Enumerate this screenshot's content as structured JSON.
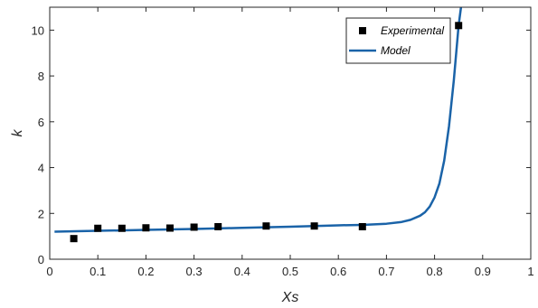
{
  "chart_data": {
    "type": "scatter",
    "title": "",
    "xlabel": "Xs",
    "ylabel": "k",
    "xlim": [
      0,
      1
    ],
    "ylim": [
      0,
      11
    ],
    "x_ticks": [
      0,
      0.1,
      0.2,
      0.3,
      0.4,
      0.5,
      0.6,
      0.7,
      0.8,
      0.9,
      1
    ],
    "x_tick_labels": [
      "0",
      "0.1",
      "0.2",
      "0.3",
      "0.4",
      "0.5",
      "0.6",
      "0.7",
      "0.8",
      "0.9",
      "1"
    ],
    "y_ticks": [
      0,
      2,
      4,
      6,
      8,
      10
    ],
    "y_tick_labels": [
      "0",
      "2",
      "4",
      "6",
      "8",
      "10"
    ],
    "grid": false,
    "legend_position": "top-right",
    "series": [
      {
        "name": "Experimental",
        "kind": "markers",
        "marker": "square",
        "color": "#000000",
        "points": [
          {
            "x": 0.05,
            "y": 0.9
          },
          {
            "x": 0.1,
            "y": 1.35
          },
          {
            "x": 0.15,
            "y": 1.35
          },
          {
            "x": 0.2,
            "y": 1.37
          },
          {
            "x": 0.25,
            "y": 1.36
          },
          {
            "x": 0.3,
            "y": 1.4
          },
          {
            "x": 0.35,
            "y": 1.42
          },
          {
            "x": 0.45,
            "y": 1.45
          },
          {
            "x": 0.55,
            "y": 1.45
          },
          {
            "x": 0.65,
            "y": 1.42
          },
          {
            "x": 0.85,
            "y": 10.2
          }
        ]
      },
      {
        "name": "Model",
        "kind": "line",
        "color": "#1a63a8",
        "points": [
          {
            "x": 0.01,
            "y": 1.2
          },
          {
            "x": 0.1,
            "y": 1.24
          },
          {
            "x": 0.2,
            "y": 1.28
          },
          {
            "x": 0.3,
            "y": 1.32
          },
          {
            "x": 0.4,
            "y": 1.37
          },
          {
            "x": 0.5,
            "y": 1.42
          },
          {
            "x": 0.6,
            "y": 1.48
          },
          {
            "x": 0.65,
            "y": 1.5
          },
          {
            "x": 0.7,
            "y": 1.55
          },
          {
            "x": 0.73,
            "y": 1.62
          },
          {
            "x": 0.75,
            "y": 1.72
          },
          {
            "x": 0.77,
            "y": 1.9
          },
          {
            "x": 0.78,
            "y": 2.05
          },
          {
            "x": 0.79,
            "y": 2.3
          },
          {
            "x": 0.8,
            "y": 2.7
          },
          {
            "x": 0.81,
            "y": 3.3
          },
          {
            "x": 0.82,
            "y": 4.3
          },
          {
            "x": 0.83,
            "y": 5.8
          },
          {
            "x": 0.84,
            "y": 7.8
          },
          {
            "x": 0.85,
            "y": 10.2
          },
          {
            "x": 0.855,
            "y": 11
          }
        ]
      }
    ]
  }
}
